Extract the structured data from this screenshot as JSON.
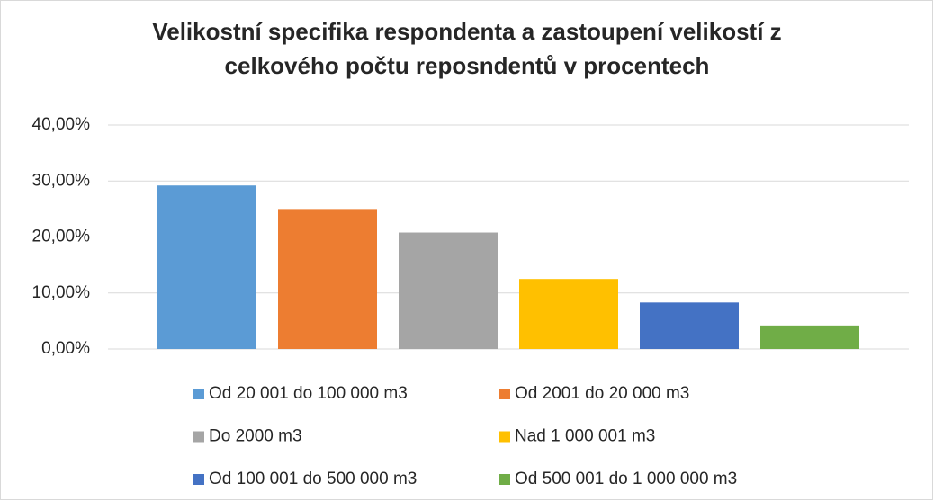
{
  "chart_data": {
    "type": "bar",
    "title": "Velikostní specifika respondenta a zastoupení velikostí z celkového počtu reposndentů v procentech",
    "series": [
      {
        "name": "Od 20 001 do 100 000 m3",
        "color": "#5b9bd5",
        "values": [
          29.2
        ]
      },
      {
        "name": "Od 2001 do 20 000 m3",
        "color": "#ed7d31",
        "values": [
          25.0
        ]
      },
      {
        "name": "Do 2000 m3",
        "color": "#a5a5a5",
        "values": [
          20.8
        ]
      },
      {
        "name": "Nad 1 000 001 m3",
        "color": "#ffc000",
        "values": [
          12.5
        ]
      },
      {
        "name": "Od 100 001 do 500 000 m3",
        "color": "#4472c4",
        "values": [
          8.3
        ]
      },
      {
        "name": "Od 500 001 do 1 000 000 m3",
        "color": "#70ad47",
        "values": [
          4.2
        ]
      }
    ],
    "ylim": [
      0,
      40
    ],
    "yticks": [
      {
        "value": 0,
        "label": "0,00%"
      },
      {
        "value": 10,
        "label": "10,00%"
      },
      {
        "value": 20,
        "label": "20,00%"
      },
      {
        "value": 30,
        "label": "30,00%"
      },
      {
        "value": 40,
        "label": "40,00%"
      }
    ],
    "grid": true,
    "legend": "bottom"
  }
}
